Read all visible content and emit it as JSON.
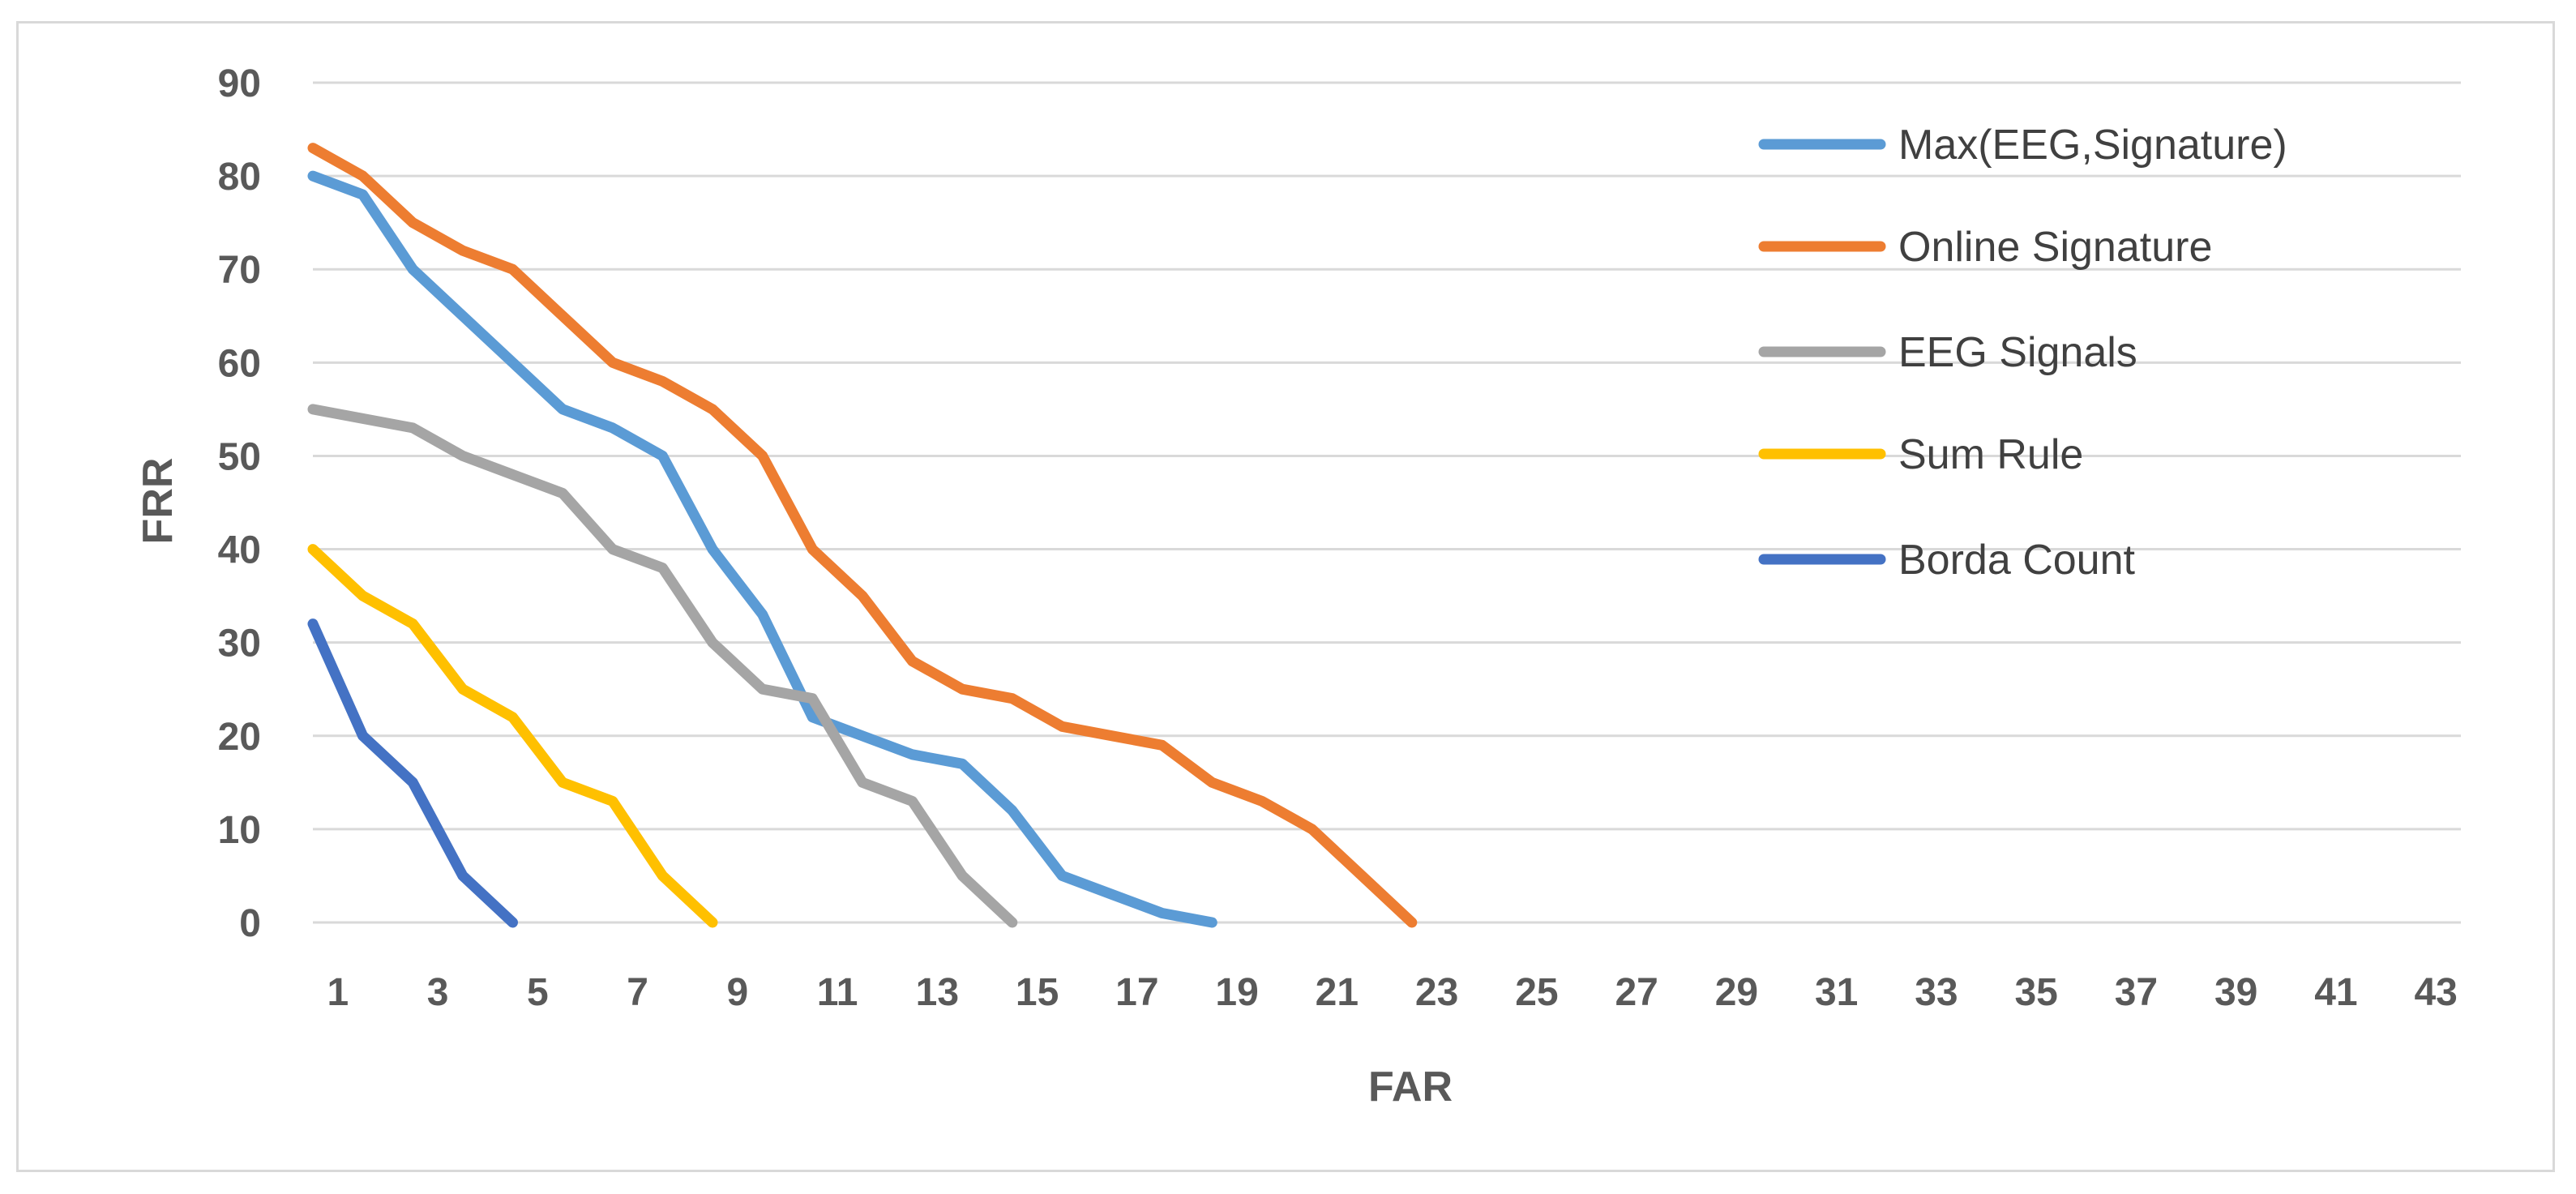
{
  "chart_data": {
    "type": "line",
    "title": "",
    "xlabel": "FAR",
    "ylabel": "FRR",
    "x_tick_labels": [
      "1",
      "3",
      "5",
      "7",
      "9",
      "11",
      "13",
      "15",
      "17",
      "19",
      "21",
      "23",
      "25",
      "27",
      "29",
      "31",
      "33",
      "35",
      "37",
      "39",
      "41",
      "43"
    ],
    "y_ticks": [
      0,
      10,
      20,
      30,
      40,
      50,
      60,
      70,
      80,
      90
    ],
    "xlim": [
      0,
      43
    ],
    "ylim": [
      0,
      90
    ],
    "grid": "horizontal",
    "legend_position": "top-right",
    "series": [
      {
        "name": "Max(EEG,Signature)",
        "color": "#5b9bd5",
        "points": [
          [
            0,
            80
          ],
          [
            1,
            78
          ],
          [
            2,
            70
          ],
          [
            3,
            65
          ],
          [
            4,
            60
          ],
          [
            5,
            55
          ],
          [
            6,
            53
          ],
          [
            7,
            50
          ],
          [
            8,
            40
          ],
          [
            9,
            33
          ],
          [
            10,
            22
          ],
          [
            11,
            20
          ],
          [
            12,
            18
          ],
          [
            13,
            17
          ],
          [
            14,
            12
          ],
          [
            15,
            5
          ],
          [
            16,
            3
          ],
          [
            17,
            1
          ],
          [
            18,
            0
          ]
        ]
      },
      {
        "name": "Online Signature",
        "color": "#ed7d31",
        "points": [
          [
            0,
            83
          ],
          [
            1,
            80
          ],
          [
            2,
            75
          ],
          [
            3,
            72
          ],
          [
            4,
            70
          ],
          [
            5,
            65
          ],
          [
            6,
            60
          ],
          [
            7,
            58
          ],
          [
            8,
            55
          ],
          [
            9,
            50
          ],
          [
            10,
            40
          ],
          [
            11,
            35
          ],
          [
            12,
            28
          ],
          [
            13,
            25
          ],
          [
            14,
            24
          ],
          [
            15,
            21
          ],
          [
            16,
            20
          ],
          [
            17,
            19
          ],
          [
            18,
            15
          ],
          [
            19,
            13
          ],
          [
            20,
            10
          ],
          [
            21,
            5
          ],
          [
            22,
            0
          ]
        ]
      },
      {
        "name": "EEG Signals",
        "color": "#a5a5a5",
        "points": [
          [
            0,
            55
          ],
          [
            1,
            54
          ],
          [
            2,
            53
          ],
          [
            3,
            50
          ],
          [
            4,
            48
          ],
          [
            5,
            46
          ],
          [
            6,
            40
          ],
          [
            7,
            38
          ],
          [
            8,
            30
          ],
          [
            9,
            25
          ],
          [
            10,
            24
          ],
          [
            11,
            15
          ],
          [
            12,
            13
          ],
          [
            13,
            5
          ],
          [
            14,
            0
          ]
        ]
      },
      {
        "name": "Sum Rule",
        "color": "#ffc000",
        "points": [
          [
            0,
            40
          ],
          [
            1,
            35
          ],
          [
            2,
            32
          ],
          [
            3,
            25
          ],
          [
            4,
            22
          ],
          [
            5,
            15
          ],
          [
            6,
            13
          ],
          [
            7,
            5
          ],
          [
            8,
            0
          ]
        ]
      },
      {
        "name": "Borda Count",
        "color": "#4472c4",
        "points": [
          [
            0,
            32
          ],
          [
            1,
            20
          ],
          [
            2,
            15
          ],
          [
            3,
            5
          ],
          [
            4,
            0
          ]
        ]
      }
    ]
  }
}
